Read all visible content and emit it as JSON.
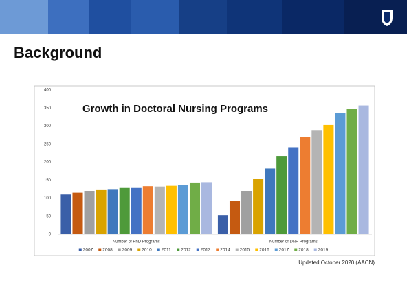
{
  "slide": {
    "title": "Background",
    "footnote": "Updated October 2020 (AACN)"
  },
  "chart_data": {
    "type": "bar",
    "title": "Growth in Doctoral Nursing Programs",
    "categories": [
      "Number of PhD Programs",
      "Number of DNP Programs"
    ],
    "series": [
      {
        "name": "2007",
        "color": "#3a5fa8",
        "values": [
          110,
          53
        ]
      },
      {
        "name": "2008",
        "color": "#c55a11",
        "values": [
          115,
          92
        ]
      },
      {
        "name": "2009",
        "color": "#a0a0a0",
        "values": [
          120,
          120
        ]
      },
      {
        "name": "2010",
        "color": "#d9a300",
        "values": [
          124,
          153
        ]
      },
      {
        "name": "2011",
        "color": "#3f78bd",
        "values": [
          125,
          182
        ]
      },
      {
        "name": "2012",
        "color": "#4e9a3a",
        "values": [
          130,
          217
        ]
      },
      {
        "name": "2013",
        "color": "#4472c4",
        "values": [
          130,
          241
        ]
      },
      {
        "name": "2014",
        "color": "#ed7d31",
        "values": [
          133,
          269
        ]
      },
      {
        "name": "2015",
        "color": "#b4b4b4",
        "values": [
          132,
          289
        ]
      },
      {
        "name": "2016",
        "color": "#ffc000",
        "values": [
          134,
          303
        ]
      },
      {
        "name": "2017",
        "color": "#5b9bd5",
        "values": [
          136,
          336
        ]
      },
      {
        "name": "2018",
        "color": "#70ad47",
        "values": [
          143,
          348
        ]
      },
      {
        "name": "2019",
        "color": "#a9b8e0",
        "values": [
          144,
          357
        ]
      }
    ],
    "ylim": [
      0,
      400
    ],
    "yticks": [
      0,
      50,
      100,
      150,
      200,
      250,
      300,
      350,
      400
    ],
    "grid": false,
    "legend": "bottom"
  }
}
